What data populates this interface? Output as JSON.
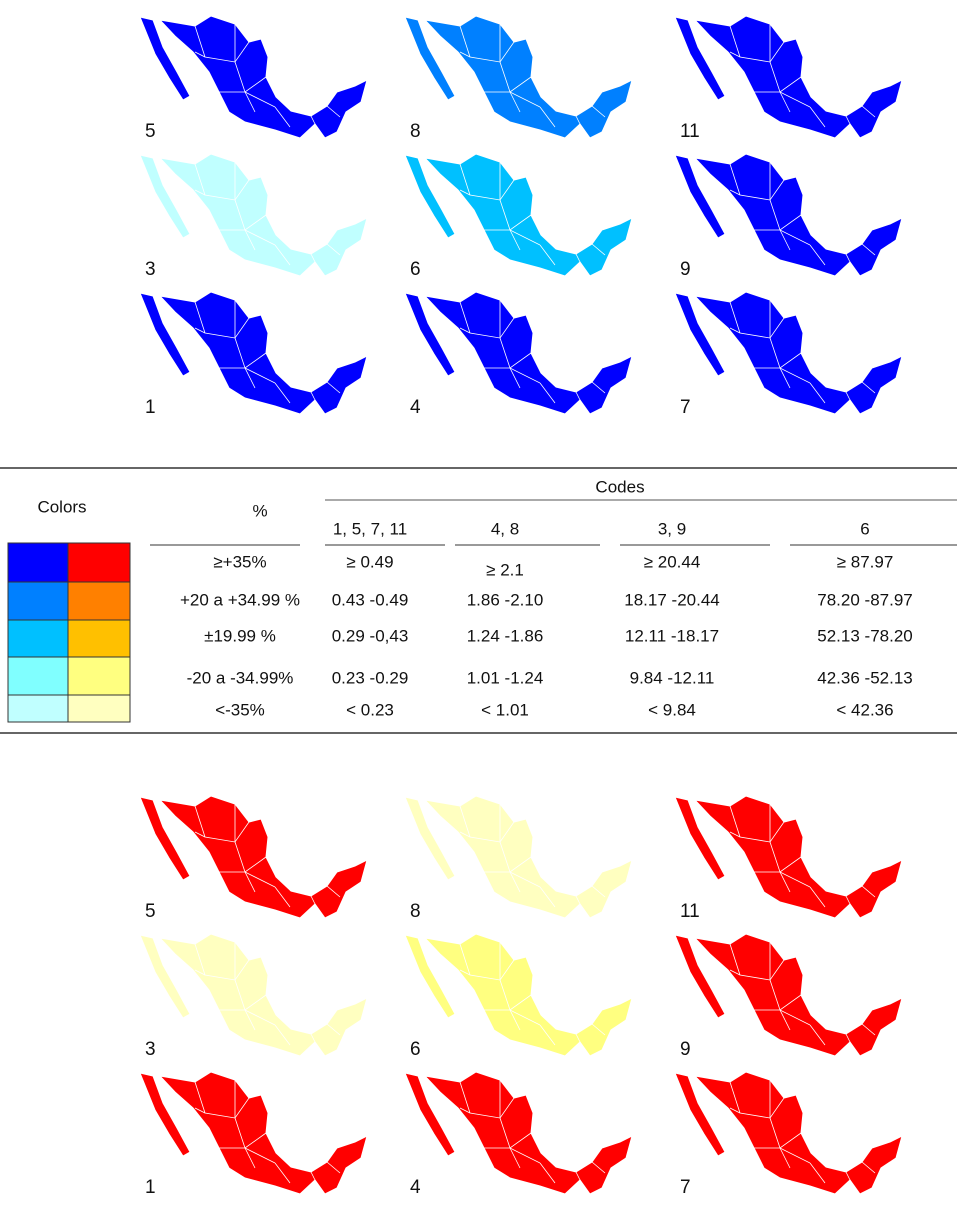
{
  "top_maps": [
    {
      "label": "5",
      "fill": "#0000ff"
    },
    {
      "label": "8",
      "fill": "#0080ff"
    },
    {
      "label": "11",
      "fill": "#0000ff"
    },
    {
      "label": "3",
      "fill": "#c0ffff"
    },
    {
      "label": "6",
      "fill": "#00c0ff"
    },
    {
      "label": "9",
      "fill": "#0000ff"
    },
    {
      "label": "1",
      "fill": "#0000ff"
    },
    {
      "label": "4",
      "fill": "#0000ff"
    },
    {
      "label": "7",
      "fill": "#0000ff"
    }
  ],
  "table": {
    "headers": {
      "colors": "Colors",
      "percent": "%",
      "codes": "Codes",
      "code_groups": [
        "1, 5, 7, 11",
        "4, 8",
        "3, 9",
        "6"
      ]
    },
    "rows": [
      {
        "blue": "#0000ff",
        "red": "#ff0000",
        "percent": "≥+35%",
        "values": [
          "≥ 0.49",
          "≥  2.1",
          "≥  20.44",
          "≥  87.97"
        ]
      },
      {
        "blue": "#0080ff",
        "red": "#ff8000",
        "percent": "+20 a +34.99 %",
        "values": [
          "0.43 -0.49",
          "1.86 -2.10",
          "18.17 -20.44",
          "78.20 -87.97"
        ]
      },
      {
        "blue": "#00c0ff",
        "red": "#ffc000",
        "percent": "±19.99 %",
        "values": [
          "0.29 -0,43",
          "1.24 -1.86",
          "12.11 -18.17",
          "52.13 -78.20"
        ]
      },
      {
        "blue": "#80ffff",
        "red": "#ffff80",
        "percent": "-20 a -34.99%",
        "values": [
          "0.23 -0.29",
          "1.01 -1.24",
          "9.84 -12.11",
          "42.36 -52.13"
        ]
      },
      {
        "blue": "#c0ffff",
        "red": "#ffffc0",
        "percent": "<-35%",
        "values": [
          "< 0.23",
          "< 1.01",
          "< 9.84",
          "< 42.36"
        ]
      }
    ]
  },
  "bottom_maps": [
    {
      "label": "5",
      "fill": "#ff0000"
    },
    {
      "label": "8",
      "fill": "#ffffc0"
    },
    {
      "label": "11",
      "fill": "#ff0000"
    },
    {
      "label": "3",
      "fill": "#ffffc0"
    },
    {
      "label": "6",
      "fill": "#ffff80"
    },
    {
      "label": "9",
      "fill": "#ff0000"
    },
    {
      "label": "1",
      "fill": "#ff0000"
    },
    {
      "label": "4",
      "fill": "#ff0000"
    },
    {
      "label": "7",
      "fill": "#ff0000"
    }
  ]
}
